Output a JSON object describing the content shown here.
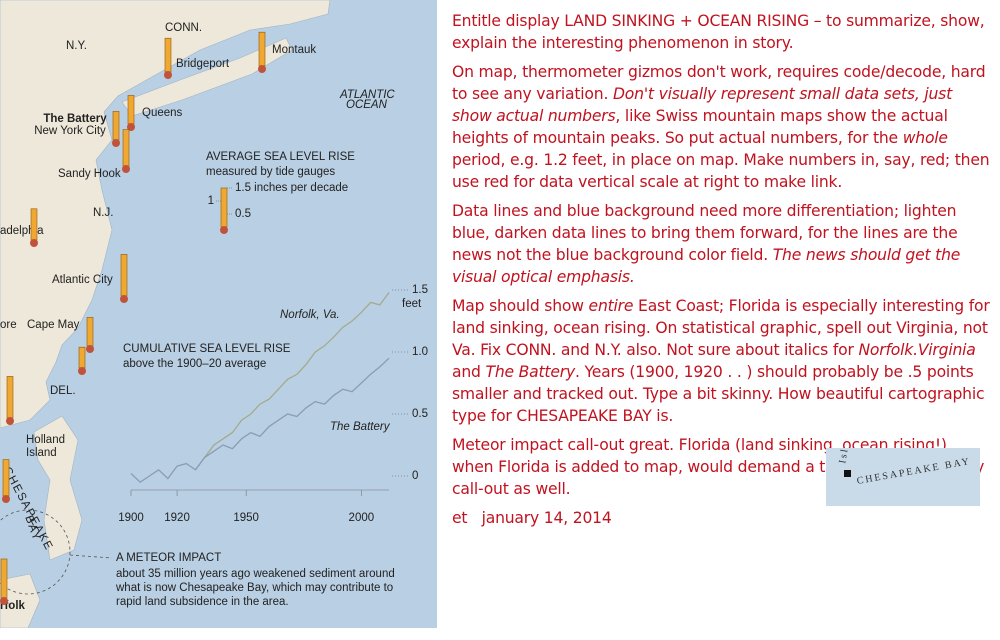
{
  "map": {
    "labels": [
      "CONN.",
      "N.Y.",
      "Montauk",
      "Bridgeport",
      "Queens",
      "The Battery",
      "New York City",
      "Sandy Hook",
      "N.J.",
      "adelphia",
      "Atlantic City",
      "ore",
      "Cape May",
      "DEL.",
      "Holland",
      "Island",
      "rfolk",
      "ATLANTIC",
      "OCEAN",
      "CHESAPEAKE",
      "BAY"
    ],
    "legend": {
      "title": "AVERAGE SEA LEVEL RISE",
      "subtitle": "measured by tide gauges",
      "ticks": [
        {
          "value": 1.5,
          "label": "1.5 inches per decade"
        },
        1,
        0.5
      ]
    },
    "gauges": [
      1.3,
      1.3,
      1.1,
      1.1,
      1.4,
      1.2,
      1.6,
      1.1,
      0.8,
      1.6,
      1.4,
      1.5
    ],
    "meteor": {
      "title": "A METEOR IMPACT",
      "lines": [
        "about 35 million years ago weakened sediment around",
        "what is now Chesapeake Bay, which may contribute to",
        "rapid land subsidence in the area."
      ]
    }
  },
  "chart": {
    "title": "CUMULATIVE SEA LEVEL RISE",
    "subtitle": "above the 1900–20 average",
    "unit": "feet",
    "xlim": [
      1900,
      2012
    ],
    "ylim": [
      0,
      1.5
    ],
    "xticks": [
      1900,
      1920,
      1950,
      2000
    ],
    "yticks": [
      0,
      0.5,
      {
        "value": 1,
        "label": "1.0"
      },
      1.5
    ],
    "x": [
      1900,
      1904,
      1908,
      1912,
      1916,
      1920,
      1924,
      1928,
      1932,
      1936,
      1940,
      1944,
      1948,
      1952,
      1956,
      1960,
      1964,
      1968,
      1972,
      1976,
      1980,
      1984,
      1988,
      1992,
      1996,
      2000,
      2004,
      2008,
      2012
    ],
    "series": [
      {
        "name": "Norfolk, Va.",
        "color": "#a6aa8c",
        "values": [
          null,
          null,
          null,
          null,
          null,
          null,
          null,
          0.05,
          0.15,
          0.25,
          0.3,
          0.35,
          0.45,
          0.5,
          0.58,
          0.62,
          0.7,
          0.78,
          0.82,
          0.9,
          1.0,
          1.05,
          1.12,
          1.2,
          1.25,
          1.32,
          1.4,
          1.38,
          1.48
        ]
      },
      {
        "name": "The Battery",
        "color": "#8b9db3",
        "values": [
          0.02,
          -0.05,
          0.0,
          0.05,
          -0.02,
          0.08,
          0.1,
          0.05,
          0.15,
          0.2,
          0.25,
          0.22,
          0.3,
          0.35,
          0.32,
          0.4,
          0.45,
          0.5,
          0.48,
          0.55,
          0.6,
          0.58,
          0.65,
          0.7,
          0.68,
          0.75,
          0.82,
          0.88,
          0.95
        ]
      }
    ]
  },
  "notes": {
    "paragraphs": [
      [
        "Entitle display LAND SINKING + OCEAN RISING – to summarize, show, explain the interesting phenomenon in story."
      ],
      [
        "On map, thermometer gizmos don't work, requires code/decode, hard to see any variation. ",
        {
          "text": "Don't visually represent small data sets, just show actual numbers",
          "italic": true
        },
        ", like Swiss mountain maps show the actual heights of mountain peaks. So put actual numbers, for the ",
        {
          "text": "whole",
          "italic": true
        },
        " period, e.g. 1.2 feet, in place on map. Make numbers in, say, red; then use red for data vertical scale at right to make link."
      ],
      [
        "Data lines and blue background need more differentiation; lighten blue, darken data lines to bring them forward, for the lines are the news not the blue background color field. ",
        {
          "text": "The news should get the visual optical emphasis.",
          "italic": true
        }
      ],
      [
        "Map should show ",
        {
          "text": "entire",
          "italic": true
        },
        " East Coast; Florida is especially interesting for land sinking, ocean rising. On statistical graphic, spell out Virginia, not Va. Fix CONN. and N.Y. also. Not sure about italics for ",
        {
          "text": "Norfolk.Virginia",
          "italic": true
        },
        " and ",
        {
          "text": "The Battery",
          "italic": true
        },
        ". Years (1900, 1920 . . ) should probably be .5 points smaller and tracked out. Type a bit skinny.  How beautiful cartographic type for CHESAPEAKE BAY is."
      ],
      [
        "Meteor impact call-out great. Florida (land sinking, ocean rising!), when Florida is added to map, would demand a thorough explanatory call-out as well."
      ]
    ],
    "signature": "et   january 14, 2014",
    "inset": [
      "Isl",
      "CHESAPEAKE BAY"
    ]
  }
}
